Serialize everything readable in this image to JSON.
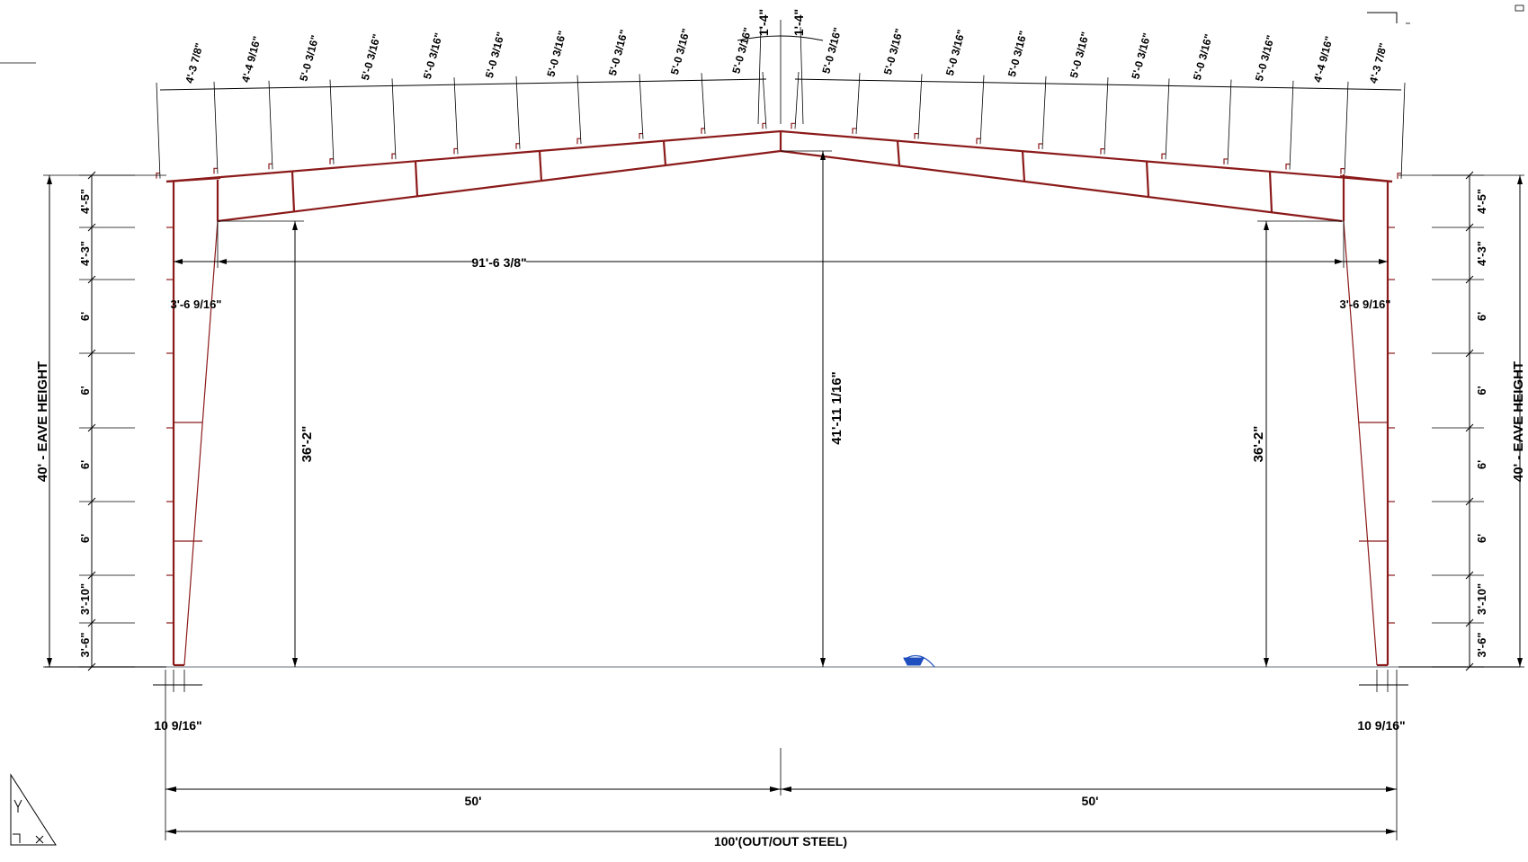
{
  "eave_height_label": "40' - EAVE HEIGHT",
  "girt_spacings": [
    "4'-5\"",
    "4'-3\"",
    "6'",
    "6'",
    "6'",
    "6'",
    "3'-10\"",
    "3'-6\""
  ],
  "clear_span": "91'-6 3/8\"",
  "clear_height_left": "36'-2\"",
  "clear_height_right": "36'-2\"",
  "ridge_height": "41'-11 1/16\"",
  "column_depth_top_left": "3'-6 9/16\"",
  "column_depth_top_right": "3'-6 9/16\"",
  "base_width_left": "10 9/16\"",
  "base_width_right": "10 9/16\"",
  "half_span_left": "50'",
  "half_span_right": "50'",
  "total_width": "100'(OUT/OUT STEEL)",
  "ridge_offsets": [
    "1'-4\"",
    "1'-4\""
  ],
  "purlin_spacings_left": [
    "4'-3 7/8\"",
    "4'-4 9/16\"",
    "5'-0 3/16\"",
    "5'-0 3/16\"",
    "5'-0 3/16\"",
    "5'-0 3/16\"",
    "5'-0 3/16\"",
    "5'-0 3/16\"",
    "5'-0 3/16\"",
    "5'-0 3/16\""
  ],
  "purlin_spacings_right": [
    "5'-0 3/16\"",
    "5'-0 3/16\"",
    "5'-0 3/16\"",
    "5'-0 3/16\"",
    "5'-0 3/16\"",
    "5'-0 3/16\"",
    "5'-0 3/16\"",
    "5'-0 3/16\"",
    "4'-4 9/16\"",
    "4'-3 7/8\""
  ],
  "colors": {
    "frame": "#8b1a1a",
    "dimension": "#000000",
    "marker": "#1f4fbf"
  },
  "icons": {
    "ucs": "ucs-triangle-icon",
    "base_marker": "blue-marker-icon"
  }
}
